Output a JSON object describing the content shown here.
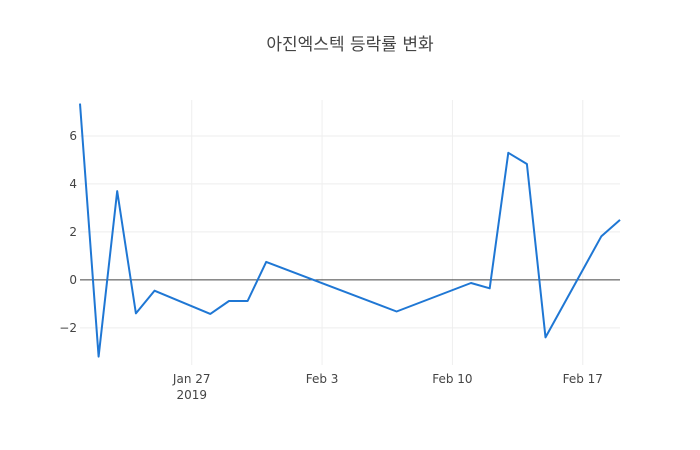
{
  "chart_data": {
    "type": "line",
    "title": "아진엑스텍 등락률 변화",
    "xlabel": "",
    "ylabel": "",
    "x_range": [
      "2019-01-21",
      "2019-02-19"
    ],
    "ylim": [
      -3.55,
      7.5
    ],
    "grid": true,
    "legend": "none",
    "x_ticks": [
      {
        "date": "2019-01-27",
        "label": "Jan 27",
        "sublabel": "2019"
      },
      {
        "date": "2019-02-03",
        "label": "Feb 3",
        "sublabel": ""
      },
      {
        "date": "2019-02-10",
        "label": "Feb 10",
        "sublabel": ""
      },
      {
        "date": "2019-02-17",
        "label": "Feb 17",
        "sublabel": ""
      }
    ],
    "y_ticks": [
      {
        "value": -2,
        "label": "−2"
      },
      {
        "value": 0,
        "label": "0"
      },
      {
        "value": 2,
        "label": "2"
      },
      {
        "value": 4,
        "label": "4"
      },
      {
        "value": 6,
        "label": "6"
      }
    ],
    "series": [
      {
        "color": "#1f77d4",
        "x": [
          "2019-01-21",
          "2019-01-22",
          "2019-01-23",
          "2019-01-24",
          "2019-01-25",
          "2019-01-28",
          "2019-01-29",
          "2019-01-30",
          "2019-01-31",
          "2019-02-07",
          "2019-02-11",
          "2019-02-12",
          "2019-02-13",
          "2019-02-14",
          "2019-02-15",
          "2019-02-18",
          "2019-02-19"
        ],
        "y": [
          7.35,
          -3.2,
          3.7,
          -1.4,
          -0.45,
          -1.42,
          -0.88,
          -0.88,
          0.75,
          -1.32,
          -0.13,
          -0.35,
          5.3,
          4.83,
          -2.4,
          1.82,
          2.5
        ]
      }
    ]
  }
}
